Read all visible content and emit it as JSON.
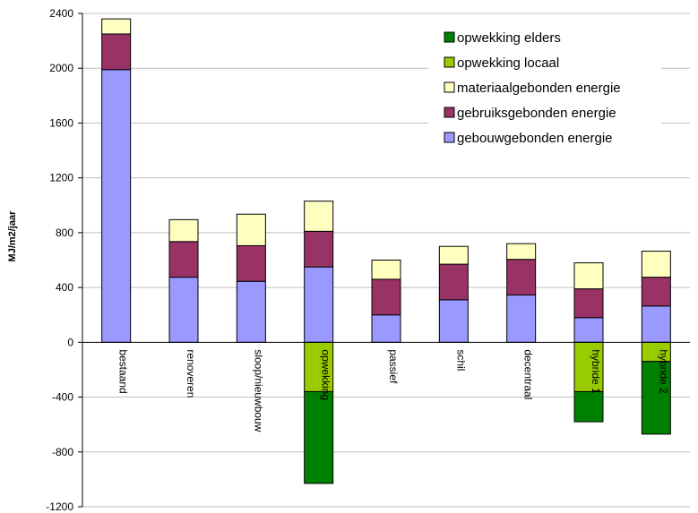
{
  "chart_data": {
    "type": "bar",
    "stacked": true,
    "title": "",
    "xlabel": "",
    "ylabel": "MJ/m2/jaar",
    "ylim": [
      -1200,
      2400
    ],
    "yticks": [
      -1200,
      -800,
      -400,
      0,
      400,
      800,
      1200,
      1600,
      2000,
      2400
    ],
    "grid": true,
    "legend_position": "top-right",
    "categories": [
      "bestaand",
      "renoveren",
      "sloop/nieuwbouw",
      "opwekking",
      "passief",
      "schil",
      "decentraal",
      "hybride 1",
      "hybride 2"
    ],
    "series": [
      {
        "name": "opwekking elders",
        "color": "#008000",
        "values": [
          0,
          0,
          0,
          -670,
          0,
          0,
          0,
          -220,
          -530
        ]
      },
      {
        "name": "opwekking locaal",
        "color": "#99CC00",
        "values": [
          0,
          0,
          0,
          -360,
          0,
          0,
          0,
          -360,
          -140
        ]
      },
      {
        "name": "materiaalgebonden energie",
        "color": "#FFFFC0",
        "values": [
          110,
          160,
          230,
          220,
          140,
          130,
          115,
          190,
          190
        ]
      },
      {
        "name": "gebruiksgebonden energie",
        "color": "#993366",
        "values": [
          260,
          260,
          260,
          260,
          260,
          260,
          260,
          210,
          210
        ]
      },
      {
        "name": "gebouwgebonden energie",
        "color": "#9999FF",
        "values": [
          1990,
          475,
          445,
          550,
          200,
          310,
          345,
          180,
          265
        ]
      }
    ]
  }
}
